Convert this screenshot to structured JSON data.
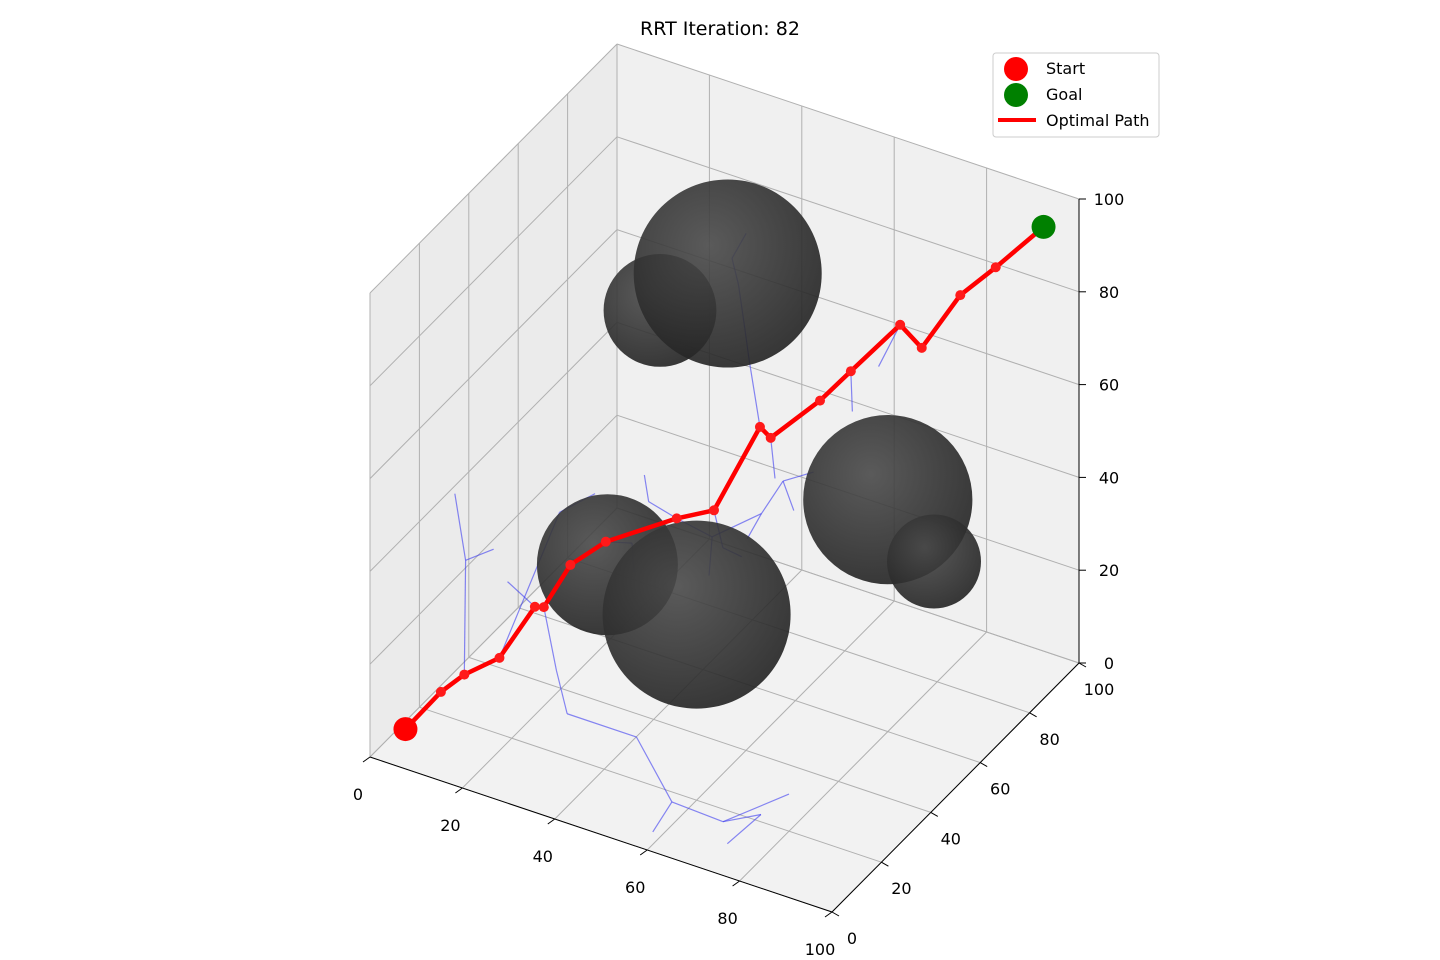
{
  "chart_data": {
    "type": "scatter",
    "title": "RRT Iteration: 82",
    "xlabel": "",
    "ylabel": "",
    "zlabel": "",
    "xlim": [
      0,
      100
    ],
    "ylim": [
      0,
      100
    ],
    "zlim": [
      0,
      100
    ],
    "xticks": [
      0,
      20,
      40,
      60,
      80,
      100
    ],
    "yticks": [
      0,
      20,
      40,
      60,
      80,
      100
    ],
    "zticks": [
      0,
      20,
      40,
      60,
      80,
      100
    ],
    "grid": true,
    "legend_position": "top-right",
    "legend": [
      {
        "label": "Start",
        "marker": "circle",
        "color": "#ff0000"
      },
      {
        "label": "Goal",
        "marker": "circle",
        "color": "#008000"
      },
      {
        "label": "Optimal Path",
        "marker": "line",
        "color": "#ff0000"
      }
    ],
    "start": {
      "x": 5,
      "y": 5,
      "z": 5
    },
    "goal": {
      "x": 95,
      "y": 95,
      "z": 95
    },
    "obstacles": [
      {
        "x": 30,
        "y": 40,
        "z": 30,
        "r": 15
      },
      {
        "x": 60,
        "y": 20,
        "z": 40,
        "r": 20
      },
      {
        "x": 40,
        "y": 70,
        "z": 80,
        "r": 20
      },
      {
        "x": 80,
        "y": 60,
        "z": 50,
        "r": 18
      },
      {
        "x": 20,
        "y": 80,
        "z": 60,
        "r": 12
      },
      {
        "x": 90,
        "y": 60,
        "z": 40,
        "r": 10
      }
    ],
    "optimal_path": [
      [
        5,
        5,
        5
      ],
      [
        10,
        10,
        12
      ],
      [
        14,
        12,
        16
      ],
      [
        20,
        15,
        20
      ],
      [
        25,
        20,
        30
      ],
      [
        28,
        18,
        32
      ],
      [
        30,
        25,
        38
      ],
      [
        35,
        30,
        42
      ],
      [
        45,
        40,
        45
      ],
      [
        52,
        42,
        48
      ],
      [
        55,
        55,
        60
      ],
      [
        60,
        50,
        62
      ],
      [
        68,
        55,
        70
      ],
      [
        72,
        60,
        75
      ],
      [
        80,
        65,
        85
      ],
      [
        82,
        70,
        78
      ],
      [
        85,
        80,
        85
      ],
      [
        90,
        85,
        90
      ],
      [
        95,
        95,
        95
      ]
    ],
    "tree_edges": [
      [
        [
          28,
          18,
          32
        ],
        [
          35,
          10,
          25
        ]
      ],
      [
        [
          35,
          10,
          25
        ],
        [
          40,
          5,
          20
        ]
      ],
      [
        [
          40,
          5,
          20
        ],
        [
          55,
          5,
          20
        ]
      ],
      [
        [
          55,
          5,
          20
        ],
        [
          60,
          10,
          5
        ]
      ],
      [
        [
          60,
          10,
          5
        ],
        [
          70,
          12,
          3
        ]
      ],
      [
        [
          70,
          12,
          3
        ],
        [
          75,
          18,
          3
        ]
      ],
      [
        [
          60,
          10,
          5
        ],
        [
          58,
          6,
          0
        ]
      ],
      [
        [
          75,
          18,
          3
        ],
        [
          72,
          10,
          0
        ]
      ],
      [
        [
          70,
          12,
          3
        ],
        [
          80,
          20,
          8
        ]
      ],
      [
        [
          14,
          12,
          16
        ],
        [
          10,
          20,
          35
        ]
      ],
      [
        [
          10,
          20,
          35
        ],
        [
          5,
          25,
          45
        ]
      ],
      [
        [
          10,
          20,
          35
        ],
        [
          15,
          22,
          38
        ]
      ],
      [
        [
          20,
          15,
          20
        ],
        [
          25,
          30,
          45
        ]
      ],
      [
        [
          25,
          30,
          45
        ],
        [
          30,
          35,
          48
        ]
      ],
      [
        [
          45,
          40,
          45
        ],
        [
          50,
          45,
          40
        ]
      ],
      [
        [
          50,
          45,
          40
        ],
        [
          52,
          40,
          35
        ]
      ],
      [
        [
          50,
          45,
          40
        ],
        [
          58,
          50,
          45
        ]
      ],
      [
        [
          58,
          50,
          45
        ],
        [
          60,
          55,
          50
        ]
      ],
      [
        [
          60,
          55,
          50
        ],
        [
          65,
          50,
          48
        ]
      ],
      [
        [
          58,
          50,
          45
        ],
        [
          56,
          48,
          40
        ]
      ],
      [
        [
          55,
          55,
          60
        ],
        [
          50,
          60,
          70
        ]
      ],
      [
        [
          50,
          60,
          70
        ],
        [
          48,
          62,
          75
        ]
      ],
      [
        [
          48,
          62,
          75
        ],
        [
          45,
          65,
          82
        ]
      ],
      [
        [
          45,
          65,
          82
        ],
        [
          42,
          68,
          85
        ]
      ],
      [
        [
          42,
          68,
          85
        ],
        [
          44,
          70,
          90
        ]
      ],
      [
        [
          45,
          40,
          45
        ],
        [
          40,
          38,
          48
        ]
      ],
      [
        [
          40,
          38,
          48
        ],
        [
          38,
          40,
          52
        ]
      ],
      [
        [
          72,
          60,
          75
        ],
        [
          75,
          55,
          70
        ]
      ],
      [
        [
          80,
          65,
          85
        ],
        [
          78,
          60,
          78
        ]
      ],
      [
        [
          60,
          50,
          62
        ],
        [
          62,
          48,
          55
        ]
      ],
      [
        [
          52,
          42,
          48
        ],
        [
          55,
          40,
          42
        ]
      ],
      [
        [
          55,
          40,
          42
        ],
        [
          58,
          42,
          40
        ]
      ],
      [
        [
          60,
          55,
          50
        ],
        [
          65,
          58,
          52
        ]
      ],
      [
        [
          25,
          20,
          30
        ],
        [
          18,
          22,
          32
        ]
      ],
      [
        [
          35,
          30,
          42
        ],
        [
          38,
          35,
          40
        ]
      ],
      [
        [
          38,
          35,
          40
        ],
        [
          40,
          32,
          36
        ]
      ]
    ]
  }
}
